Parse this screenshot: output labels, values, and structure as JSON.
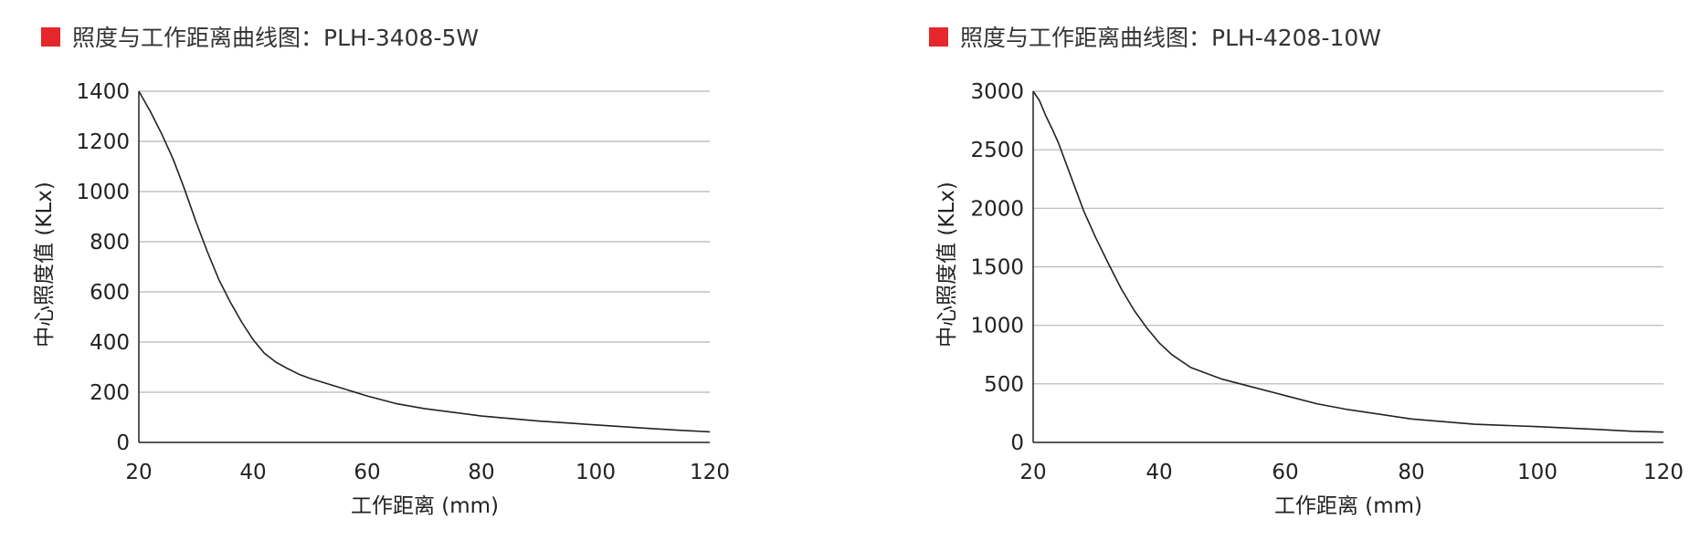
{
  "chart_data": [
    {
      "type": "line",
      "title": "照度与工作距离曲线图：PLH-3408-5W",
      "xlabel": "工作距离 (mm)",
      "ylabel": "中心照度值 (KLx)",
      "xlim": [
        20,
        120
      ],
      "ylim": [
        0,
        1400
      ],
      "xticks": [
        "20",
        "40",
        "60",
        "80",
        "100",
        "120"
      ],
      "yticks": [
        "0",
        "200",
        "400",
        "600",
        "800",
        "1000",
        "1200",
        "1400"
      ],
      "grid": "horizontal",
      "marker_color": "#e5262b",
      "line_color": "#222222",
      "x": [
        20,
        22,
        24,
        26,
        28,
        30,
        32,
        34,
        36,
        38,
        40,
        42,
        44,
        46,
        48,
        50,
        55,
        60,
        65,
        70,
        80,
        90,
        100,
        110,
        115,
        120
      ],
      "y": [
        1400,
        1320,
        1230,
        1130,
        1010,
        880,
        760,
        650,
        560,
        480,
        410,
        355,
        320,
        295,
        272,
        255,
        220,
        185,
        155,
        135,
        105,
        85,
        70,
        55,
        48,
        42
      ]
    },
    {
      "type": "line",
      "title": "照度与工作距离曲线图：PLH-4208-10W",
      "xlabel": "工作距离 (mm)",
      "ylabel": "中心照度值 (KLx)",
      "xlim": [
        20,
        120
      ],
      "ylim": [
        0,
        3000
      ],
      "xticks": [
        "20",
        "40",
        "60",
        "80",
        "100",
        "120"
      ],
      "yticks": [
        "0",
        "500",
        "1000",
        "1500",
        "2000",
        "2500",
        "3000"
      ],
      "grid": "horizontal",
      "marker_color": "#e5262b",
      "line_color": "#222222",
      "x": [
        20,
        21,
        22,
        23,
        24,
        26,
        28,
        30,
        32,
        34,
        36,
        38,
        40,
        42,
        45,
        48,
        50,
        55,
        60,
        65,
        70,
        80,
        90,
        100,
        110,
        115,
        120
      ],
      "y": [
        3000,
        2920,
        2790,
        2680,
        2560,
        2270,
        1980,
        1740,
        1520,
        1310,
        1130,
        980,
        850,
        750,
        640,
        580,
        540,
        470,
        400,
        330,
        280,
        200,
        155,
        135,
        110,
        95,
        88
      ]
    }
  ]
}
